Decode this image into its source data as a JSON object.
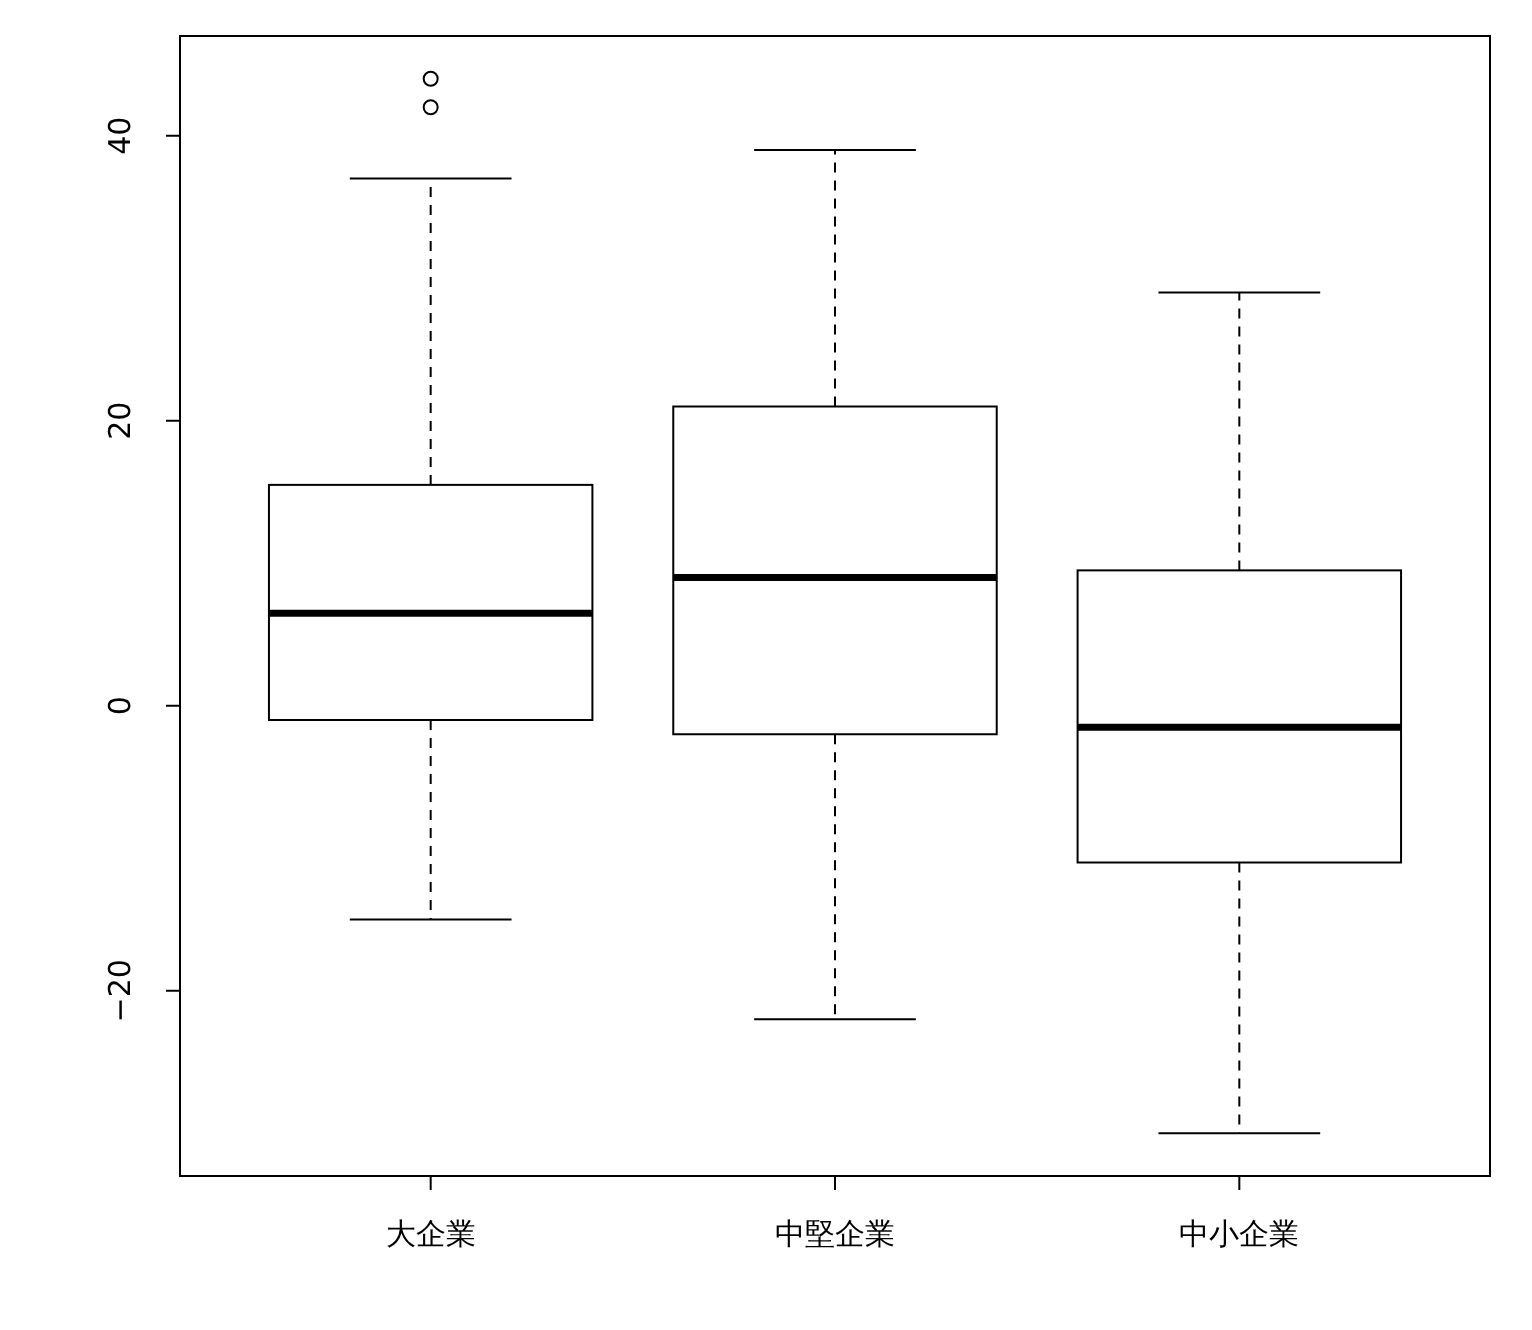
{
  "chart_data": {
    "type": "box",
    "categories": [
      "大企業",
      "中堅企業",
      "中小企業"
    ],
    "boxes": [
      {
        "low": -15,
        "q1": -1,
        "median": 6.5,
        "q3": 15.5,
        "high": 37,
        "outliers": [
          42,
          44
        ]
      },
      {
        "low": -22,
        "q1": -2,
        "median": 9,
        "q3": 21,
        "high": 39
      },
      {
        "low": -30,
        "q1": -11,
        "median": -1.5,
        "q3": 9.5,
        "high": 29
      }
    ],
    "ylim": [
      -33,
      47
    ],
    "yticks": [
      -20,
      0,
      20,
      40
    ]
  }
}
